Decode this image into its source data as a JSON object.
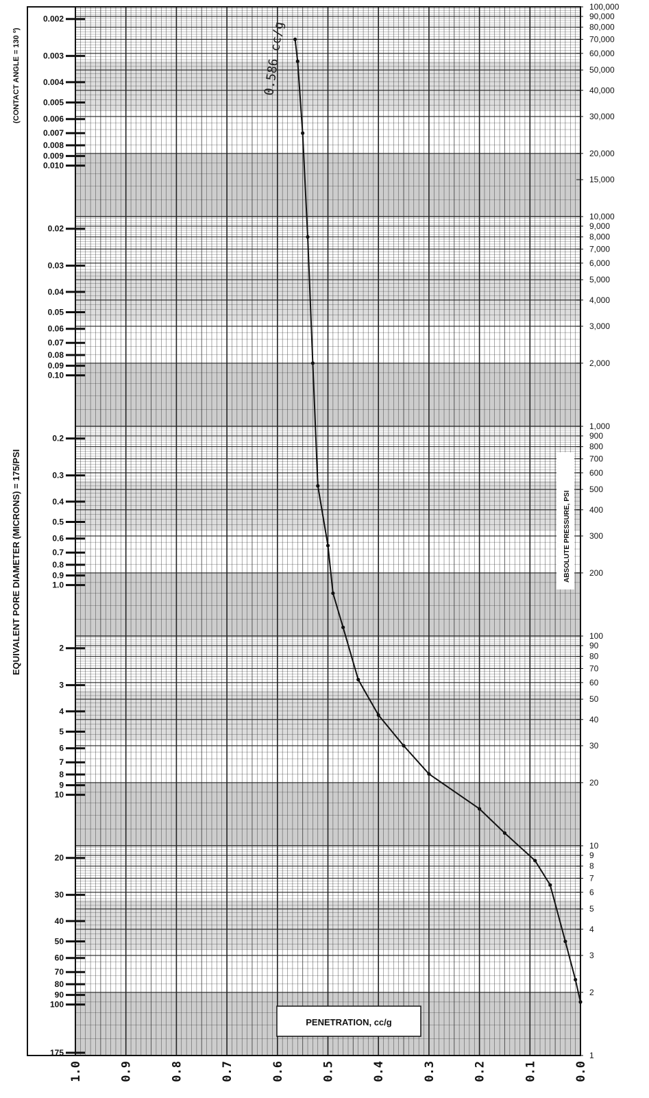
{
  "chart_data": {
    "type": "line",
    "left_axis_title": "EQUIVALENT PORE DIAMETER   (MICRONS)   =   175/PSI",
    "left_axis_note": "(CONTACT ANGLE = 130 º)",
    "right_axis_title": "ABSOLUTE PRESSURE, PSI",
    "x_axis_title": "PENETRATION, cc/g",
    "annotation": "0.586 cc/g",
    "x_reversed": true,
    "xlim": [
      0.0,
      1.0
    ],
    "x_ticks": [
      "1.0",
      "0.9",
      "0.8",
      "0.7",
      "0.6",
      "0.5",
      "0.4",
      "0.3",
      "0.2",
      "0.1",
      "0.0"
    ],
    "pressure_scale": "log",
    "pressure_range": [
      1,
      100000
    ],
    "pressure_ticks": [
      "100,000",
      "90,000",
      "80,000",
      "70,000",
      "60,000",
      "50,000",
      "40,000",
      "30,000",
      "20,000",
      "15,000",
      "10,000",
      "9,000",
      "8,000",
      "7,000",
      "6,000",
      "5,000",
      "4,000",
      "3,000",
      "2,000",
      "1,000",
      "900",
      "800",
      "700",
      "600",
      "500",
      "400",
      "300",
      "200",
      "100",
      "90",
      "80",
      "70",
      "60",
      "50",
      "40",
      "30",
      "20",
      "10",
      "9",
      "8",
      "7",
      "6",
      "5",
      "4",
      "3",
      "2",
      "1"
    ],
    "diameter_ticks": [
      "0.002",
      "0.003",
      "0.004",
      "0.005",
      "0.006",
      "0.007",
      "0.008",
      "0.009",
      "0.010",
      "0.02",
      "0.03",
      "0.04",
      "0.05",
      "0.06",
      "0.07",
      "0.08",
      "0.09",
      "0.10",
      "0.2",
      "0.3",
      "0.4",
      "0.5",
      "0.6",
      "0.7",
      "0.8",
      "0.9",
      "1.0",
      "2",
      "3",
      "4",
      "5",
      "6",
      "7",
      "8",
      "9",
      "10",
      "20",
      "30",
      "40",
      "50",
      "60",
      "70",
      "80",
      "90",
      "100",
      "175"
    ],
    "series": [
      {
        "points": [
          {
            "x": 0.0,
            "y": 1.8
          },
          {
            "x": 0.01,
            "y": 2.3
          },
          {
            "x": 0.03,
            "y": 3.5
          },
          {
            "x": 0.06,
            "y": 6.5
          },
          {
            "x": 0.09,
            "y": 8.5
          },
          {
            "x": 0.15,
            "y": 11.5
          },
          {
            "x": 0.2,
            "y": 15
          },
          {
            "x": 0.3,
            "y": 22
          },
          {
            "x": 0.35,
            "y": 30
          },
          {
            "x": 0.4,
            "y": 42
          },
          {
            "x": 0.44,
            "y": 62
          },
          {
            "x": 0.47,
            "y": 110
          },
          {
            "x": 0.49,
            "y": 160
          },
          {
            "x": 0.5,
            "y": 270
          },
          {
            "x": 0.52,
            "y": 520
          },
          {
            "x": 0.53,
            "y": 2000
          },
          {
            "x": 0.54,
            "y": 8000
          },
          {
            "x": 0.55,
            "y": 25000
          },
          {
            "x": 0.56,
            "y": 55000
          },
          {
            "x": 0.565,
            "y": 70000
          }
        ]
      }
    ]
  }
}
